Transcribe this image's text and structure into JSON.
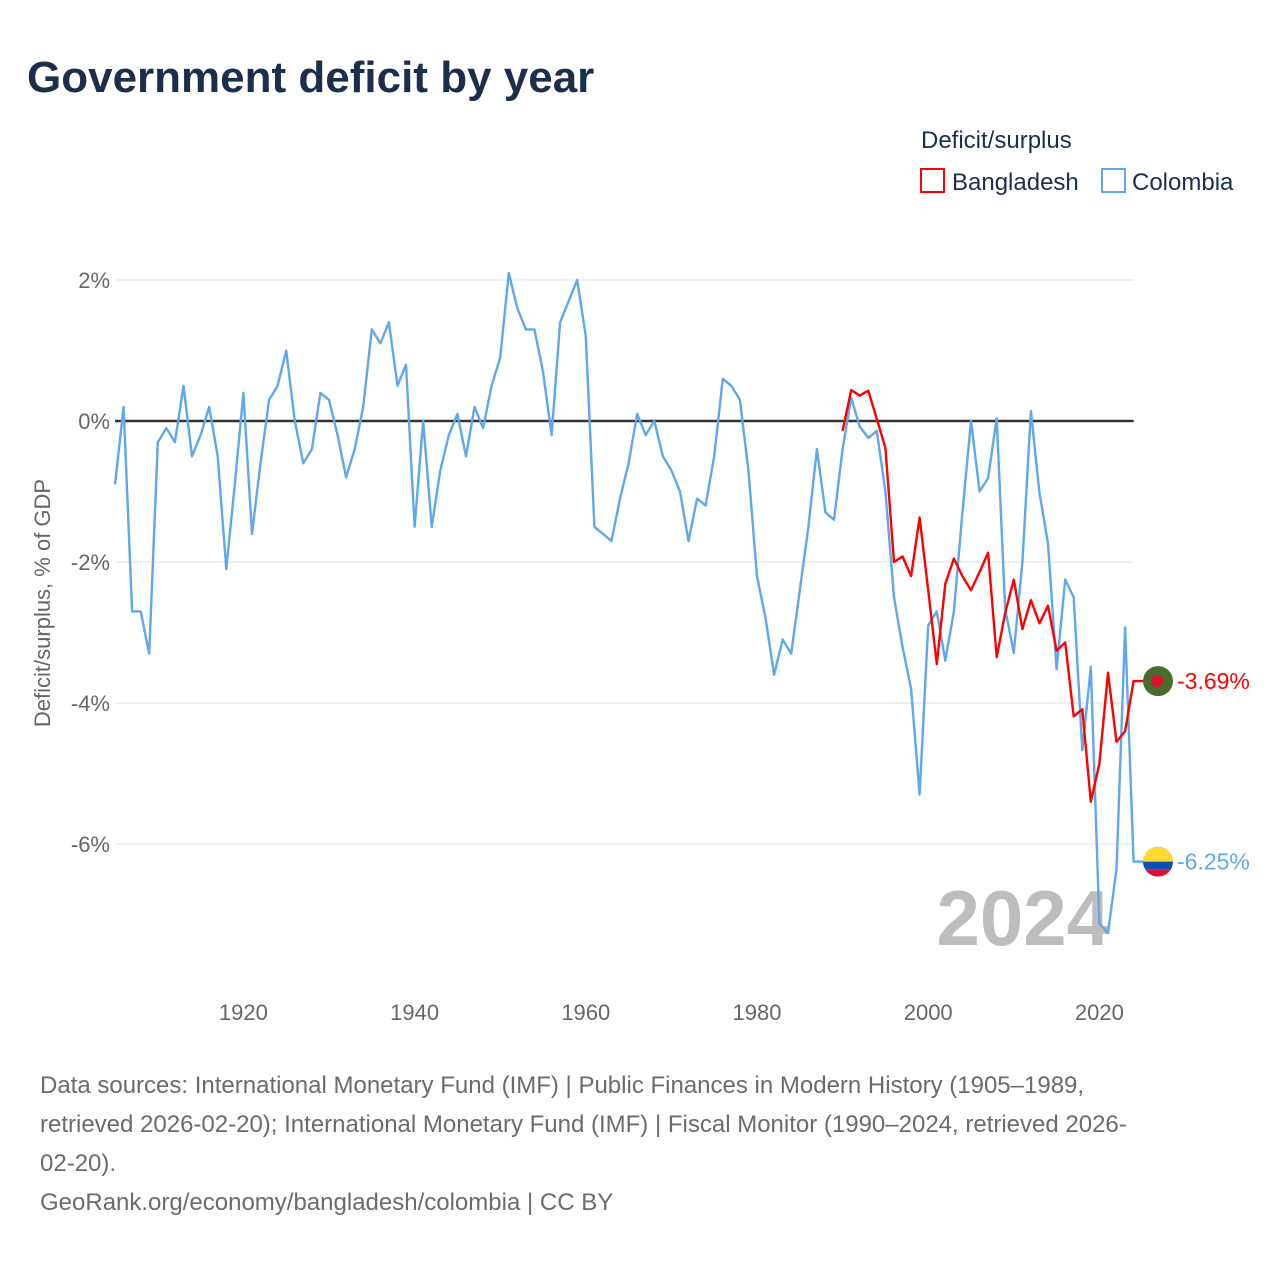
{
  "title": "Government deficit by year",
  "legend": {
    "title": "Deficit/surplus",
    "items": [
      {
        "label": "Bangladesh",
        "color": "#ff0000"
      },
      {
        "label": "Colombia",
        "color": "#5fa8ec"
      }
    ]
  },
  "watermark_year": "2024",
  "footer": {
    "lines": [
      "Data sources: International Monetary Fund (IMF) | Public Finances in Modern History (1905–1989,",
      "retrieved 2026-02-20); International Monetary Fund (IMF) | Fiscal Monitor (1990–2024, retrieved 2026-",
      "02-20).",
      "GeoRank.org/economy/bangladesh/colombia | CC BY"
    ]
  },
  "chart_data": {
    "type": "line",
    "title": "Government deficit by year",
    "xlabel": "",
    "ylabel": "Deficit/surplus, % of GDP",
    "xlim": [
      1905,
      2024
    ],
    "ylim": [
      -7.5,
      2.2
    ],
    "grid": true,
    "legend_position": "top-right",
    "x_ticks": [
      1920,
      1940,
      1960,
      1980,
      2000,
      2020
    ],
    "y_ticks": [
      {
        "v": 2,
        "label": "2%"
      },
      {
        "v": 0,
        "label": "0%"
      },
      {
        "v": -2,
        "label": "-2%"
      },
      {
        "v": -4,
        "label": "-4%"
      },
      {
        "v": -6,
        "label": "-6%"
      }
    ],
    "series": [
      {
        "name": "Bangladesh",
        "color": "#ff0000",
        "start_year": 1990,
        "end_label": "-3.69%",
        "flag": "bangladesh",
        "values": [
          -0.14,
          0.44,
          0.36,
          0.43,
          0.03,
          -0.38,
          -2.0,
          -1.92,
          -2.2,
          -1.37,
          -2.4,
          -3.45,
          -2.31,
          -1.95,
          -2.2,
          -2.4,
          -2.14,
          -1.87,
          -3.35,
          -2.72,
          -2.25,
          -2.95,
          -2.54,
          -2.87,
          -2.62,
          -3.26,
          -3.14,
          -4.19,
          -4.09,
          -5.4,
          -4.86,
          -3.57,
          -4.55,
          -4.4,
          -3.69
        ]
      },
      {
        "name": "Colombia",
        "color": "#5fa8ec",
        "start_year": 1905,
        "end_label": "-6.25%",
        "flag": "colombia",
        "values": [
          -0.9,
          0.2,
          -2.7,
          -2.7,
          -3.3,
          -0.3,
          -0.1,
          -0.3,
          0.5,
          -0.5,
          -0.2,
          0.2,
          -0.5,
          -2.1,
          -0.9,
          0.4,
          -1.6,
          -0.6,
          0.3,
          0.5,
          1.0,
          0.0,
          -0.6,
          -0.4,
          0.4,
          0.3,
          -0.2,
          -0.8,
          -0.4,
          0.2,
          1.3,
          1.1,
          1.4,
          0.5,
          0.8,
          -1.5,
          0.0,
          -1.5,
          -0.7,
          -0.2,
          0.1,
          -0.5,
          0.2,
          -0.1,
          0.5,
          0.9,
          2.1,
          1.6,
          1.3,
          1.3,
          0.7,
          -0.2,
          1.4,
          1.7,
          2.0,
          1.2,
          -1.5,
          -1.6,
          -1.7,
          -1.1,
          -0.6,
          0.1,
          -0.2,
          0.0,
          -0.5,
          -0.7,
          -1.0,
          -1.7,
          -1.1,
          -1.2,
          -0.5,
          0.6,
          0.5,
          0.3,
          -0.7,
          -2.2,
          -2.8,
          -3.6,
          -3.1,
          -3.3,
          -2.4,
          -1.5,
          -0.4,
          -1.3,
          -1.4,
          -0.4,
          0.33,
          -0.08,
          -0.24,
          -0.14,
          -1.0,
          -2.5,
          -3.2,
          -3.8,
          -5.3,
          -2.9,
          -2.7,
          -3.4,
          -2.7,
          -1.3,
          0.0,
          -1.0,
          -0.81,
          0.04,
          -2.67,
          -3.29,
          -2.0,
          0.14,
          -1.02,
          -1.74,
          -3.52,
          -2.25,
          -2.5,
          -4.67,
          -3.49,
          -7.13,
          -7.26,
          -6.36,
          -2.93,
          -6.25
        ]
      }
    ]
  }
}
